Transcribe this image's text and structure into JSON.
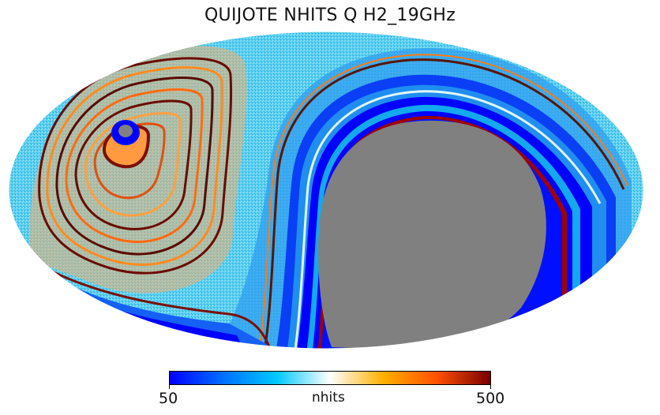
{
  "title": "QUIJOTE NHITS Q H2_19GHz",
  "colorbar": {
    "min_label": "50",
    "max_label": "500",
    "unit_label": "nhits",
    "colors": [
      "#0000ff",
      "#0070ff",
      "#00c8ff",
      "#ffffff",
      "#ffb000",
      "#ff5000",
      "#780000"
    ]
  },
  "map": {
    "projection": "mollweide",
    "masked_color": "#808080",
    "background_color": "#52c9ea"
  }
}
